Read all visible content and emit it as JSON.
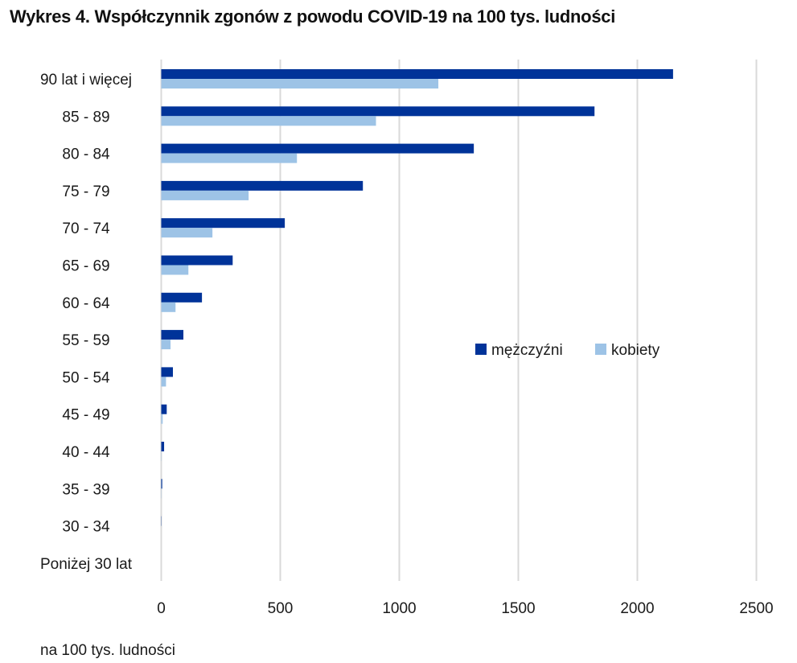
{
  "chart_data": {
    "type": "bar",
    "orientation": "horizontal",
    "title": "Wykres 4. Współczynnik zgonów z powodu COVID-19 na 100 tys. ludności",
    "xlabel": "na 100 tys. ludności",
    "ylabel": "",
    "xlim": [
      0,
      2500
    ],
    "xticks": [
      0,
      500,
      1000,
      1500,
      2000,
      2500
    ],
    "xtick_labels": [
      "0",
      "500",
      "1000",
      "1500",
      "2000",
      "2500"
    ],
    "grid": "vertical",
    "legend_position": "center-right",
    "categories": [
      "90 lat i więcej",
      "85 - 89",
      "80 - 84",
      "75 - 79",
      "70 - 74",
      "65 - 69",
      "60 - 64",
      "55 - 59",
      "50 - 54",
      "45 - 49",
      "40 - 44",
      "35 - 39",
      "30 - 34",
      "Poniżej 30 lat"
    ],
    "series": [
      {
        "name": "mężczyźni",
        "color": "#003399",
        "values": [
          2150,
          1820,
          1313,
          847,
          519,
          300,
          171,
          93,
          49,
          23,
          12,
          4,
          1,
          0
        ]
      },
      {
        "name": "kobiety",
        "color": "#9dc3e6",
        "values": [
          1164,
          902,
          570,
          367,
          215,
          114,
          60,
          39,
          20,
          6,
          1,
          1,
          0,
          0
        ]
      }
    ]
  },
  "colors": {
    "grid": "#d9d9d9"
  }
}
